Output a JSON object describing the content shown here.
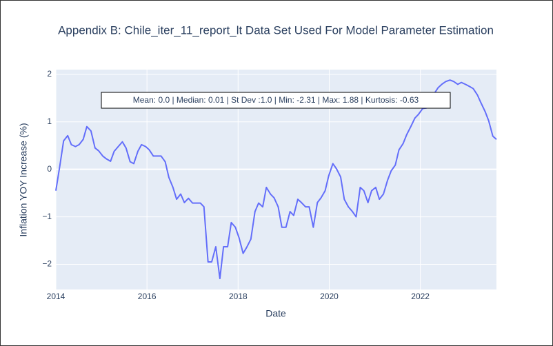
{
  "chart_data": {
    "type": "line",
    "title": "Appendix B: Chile_iter_11_report_lt Data Set Used For Model Parameter Estimation",
    "x_label": "Date",
    "y_label": "Inflation YOY Increase (%)",
    "annotation": "Mean: 0.0 | Median: 0.01 | St Dev :1.0 | Min: -2.31 | Max: 1.88 | Kurtosis: -0.63",
    "x": [
      2014.0,
      2014.09,
      2014.17,
      2014.26,
      2014.34,
      2014.43,
      2014.51,
      2014.6,
      2014.68,
      2014.77,
      2014.86,
      2014.94,
      2015.03,
      2015.11,
      2015.2,
      2015.28,
      2015.37,
      2015.46,
      2015.54,
      2015.63,
      2015.71,
      2015.8,
      2015.88,
      2015.97,
      2016.05,
      2016.14,
      2016.23,
      2016.31,
      2016.4,
      2016.48,
      2016.57,
      2016.65,
      2016.74,
      2016.82,
      2016.91,
      2017.0,
      2017.08,
      2017.17,
      2017.25,
      2017.34,
      2017.42,
      2017.51,
      2017.6,
      2017.68,
      2017.77,
      2017.85,
      2017.94,
      2018.02,
      2018.11,
      2018.19,
      2018.28,
      2018.37,
      2018.45,
      2018.54,
      2018.62,
      2018.71,
      2018.79,
      2018.88,
      2018.96,
      2019.05,
      2019.14,
      2019.22,
      2019.31,
      2019.39,
      2019.48,
      2019.56,
      2019.65,
      2019.74,
      2019.82,
      2019.91,
      2019.99,
      2020.08,
      2020.16,
      2020.25,
      2020.33,
      2020.42,
      2020.51,
      2020.59,
      2020.68,
      2020.76,
      2020.85,
      2020.93,
      2021.02,
      2021.1,
      2021.19,
      2021.28,
      2021.36,
      2021.45,
      2021.53,
      2021.62,
      2021.7,
      2021.79,
      2021.88,
      2021.96,
      2022.05,
      2022.13,
      2022.22,
      2022.3,
      2022.39,
      2022.47,
      2022.56,
      2022.65,
      2022.73,
      2022.82,
      2022.9,
      2022.99,
      2023.07,
      2023.16,
      2023.25,
      2023.33,
      2023.42,
      2023.5,
      2023.59,
      2023.67
    ],
    "series": [
      {
        "color": "#636efa",
        "values": [
          -0.45,
          0.09,
          0.6,
          0.71,
          0.52,
          0.48,
          0.52,
          0.63,
          0.9,
          0.81,
          0.45,
          0.39,
          0.28,
          0.22,
          0.17,
          0.38,
          0.48,
          0.58,
          0.45,
          0.16,
          0.12,
          0.38,
          0.52,
          0.48,
          0.41,
          0.28,
          0.28,
          0.28,
          0.16,
          -0.17,
          -0.38,
          -0.63,
          -0.52,
          -0.7,
          -0.61,
          -0.71,
          -0.71,
          -0.71,
          -0.79,
          -1.95,
          -1.95,
          -1.63,
          -2.3,
          -1.63,
          -1.63,
          -1.12,
          -1.22,
          -1.44,
          -1.77,
          -1.64,
          -1.47,
          -0.89,
          -0.71,
          -0.79,
          -0.38,
          -0.52,
          -0.6,
          -0.79,
          -1.22,
          -1.22,
          -0.89,
          -0.97,
          -0.63,
          -0.7,
          -0.79,
          -0.79,
          -1.22,
          -0.7,
          -0.6,
          -0.45,
          -0.13,
          0.12,
          0.01,
          -0.16,
          -0.63,
          -0.79,
          -0.89,
          -1.0,
          -0.38,
          -0.45,
          -0.7,
          -0.45,
          -0.38,
          -0.63,
          -0.52,
          -0.23,
          -0.03,
          0.09,
          0.41,
          0.54,
          0.73,
          0.9,
          1.08,
          1.16,
          1.28,
          1.29,
          1.43,
          1.59,
          1.72,
          1.79,
          1.85,
          1.88,
          1.85,
          1.79,
          1.83,
          1.79,
          1.75,
          1.7,
          1.57,
          1.4,
          1.22,
          1.02,
          0.7,
          0.63
        ]
      }
    ],
    "xlim": [
      2014,
      2023.67
    ],
    "xticks": [
      2014,
      2016,
      2018,
      2020,
      2022
    ],
    "ylim": [
      -2.53,
      2.1
    ],
    "yticks": [
      {
        "value": -2,
        "label": "−2"
      },
      {
        "value": -1,
        "label": "−1"
      },
      0,
      1,
      2
    ],
    "grid": true
  }
}
